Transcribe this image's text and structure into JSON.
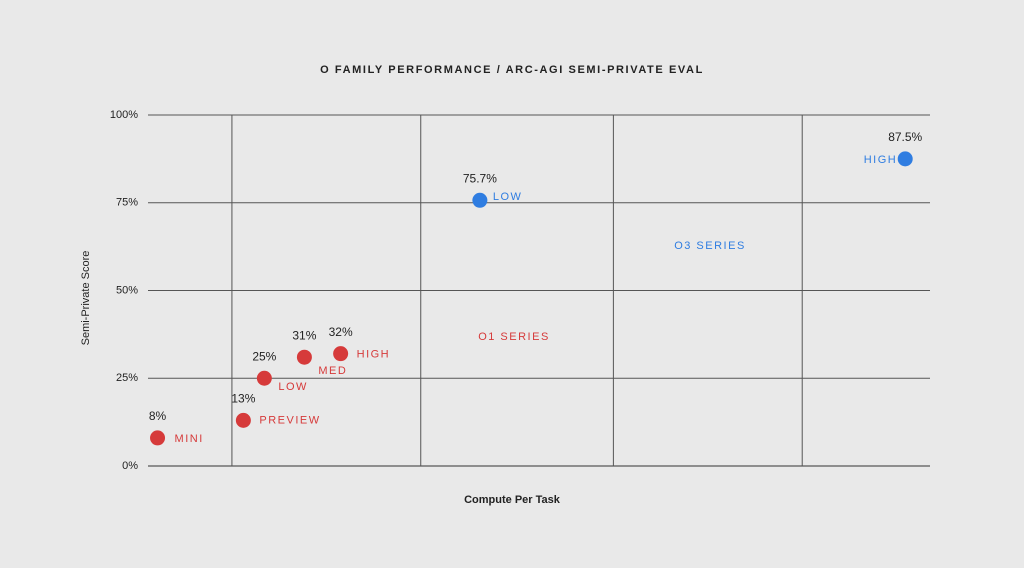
{
  "chart_data": {
    "type": "scatter",
    "title": "O FAMILY PERFORMANCE / ARC-AGI SEMI-PRIVATE EVAL",
    "x_label": "Compute Per Task",
    "y_label": "Semi-Private Score",
    "xlim": [
      0,
      4.1
    ],
    "xgrid": [
      0.44,
      1.43,
      2.44,
      3.43
    ],
    "ylim": [
      0,
      100
    ],
    "yticks": [
      {
        "value": 0,
        "label": "0%"
      },
      {
        "value": 25,
        "label": "25%"
      },
      {
        "value": 50,
        "label": "50%"
      },
      {
        "value": 75,
        "label": "75%"
      },
      {
        "value": 100,
        "label": "100%"
      }
    ],
    "grid": true,
    "series": [
      {
        "name": "O1 SERIES",
        "color": "#d63a3a",
        "labels": [
          "MINI",
          "PREVIEW",
          "LOW",
          "MED",
          "HIGH"
        ],
        "x": [
          0.05,
          0.5,
          0.61,
          0.82,
          1.01
        ],
        "values": [
          8,
          13,
          25,
          31,
          32
        ],
        "value_labels": [
          "8%",
          "13%",
          "25%",
          "31%",
          "32%"
        ]
      },
      {
        "name": "O3 SERIES",
        "color": "#2f7de1",
        "labels": [
          "LOW",
          "HIGH"
        ],
        "x": [
          1.74,
          3.97
        ],
        "values": [
          75.7,
          87.5
        ],
        "value_labels": [
          "75.7%",
          "87.5%"
        ]
      }
    ]
  }
}
